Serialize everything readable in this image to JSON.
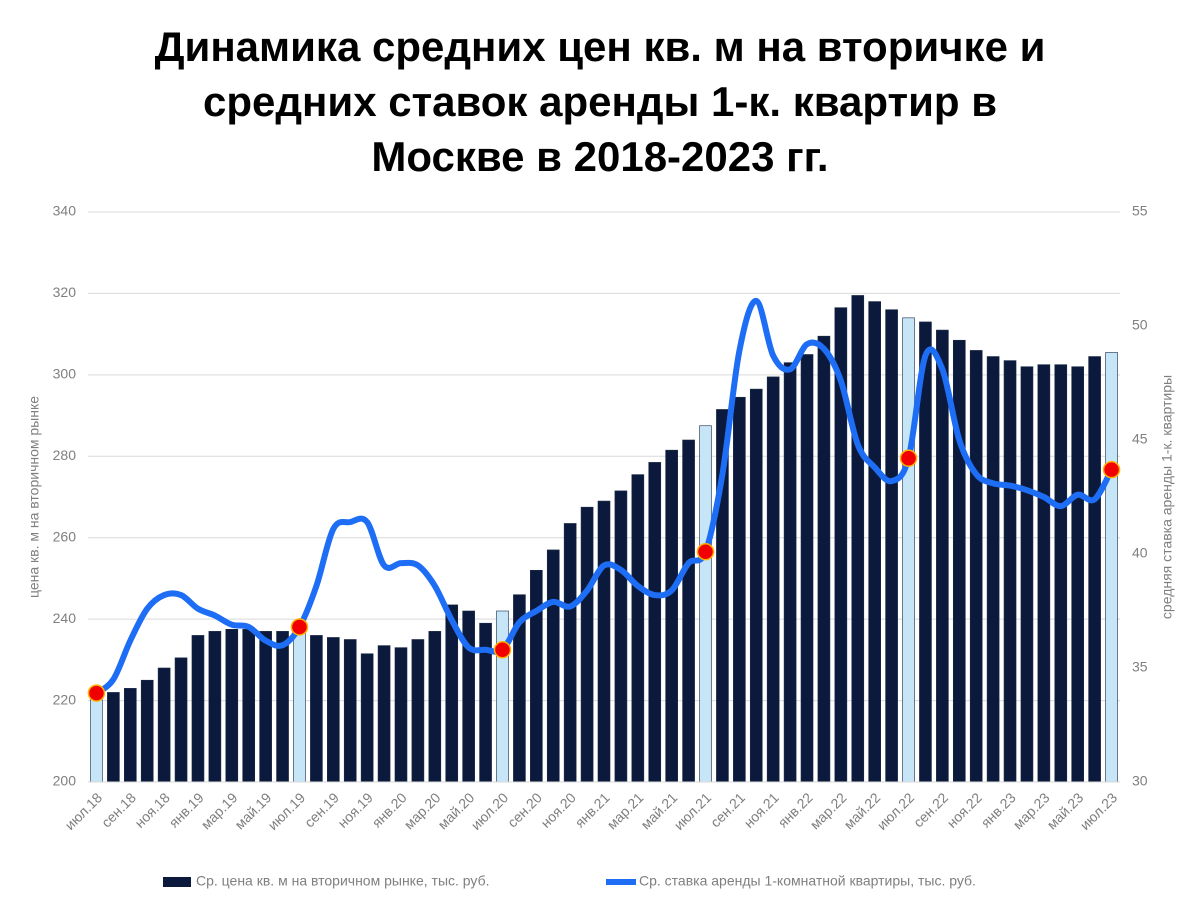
{
  "chart_data": {
    "type": "bar_line",
    "title": [
      "Динамика средних цен кв. м на вторичке и",
      "средних ставок аренды 1-к. квартир в",
      "Москве в 2018-2023 гг."
    ],
    "y_label": "цена кв. м на вторичном рынке",
    "y2_label": "средняя ставка аренды 1-к. квартиры",
    "categories": [
      "июл.18",
      null,
      "сен.18",
      null,
      "ноя.18",
      null,
      "янв.19",
      null,
      "мар.19",
      null,
      "май.19",
      null,
      "июл.19",
      null,
      "сен.19",
      null,
      "ноя.19",
      null,
      "янв.20",
      null,
      "мар.20",
      null,
      "май.20",
      null,
      "июл.20",
      null,
      "сен.20",
      null,
      "ноя.20",
      null,
      "янв.21",
      null,
      "мар.21",
      null,
      "май.21",
      null,
      "июл.21",
      null,
      "сен.21",
      null,
      "ноя.21",
      null,
      "янв.22",
      null,
      "мар.22",
      null,
      "май.22",
      null,
      "июл.22",
      null,
      "сен.22",
      null,
      "ноя.22",
      null,
      "янв.23",
      null,
      "мар.23",
      null,
      "май.23",
      null,
      "июл.23"
    ],
    "series": [
      {
        "name": "Ср. цена кв. м на вторичном рынке, тыс. руб.",
        "type": "bar",
        "color": "#0b1a3c",
        "values": [
          222,
          222,
          223,
          225,
          228,
          230.5,
          236,
          237,
          237.5,
          237.5,
          237,
          237,
          237.5,
          236,
          235.5,
          235,
          231.5,
          233.5,
          233,
          235,
          237,
          243.5,
          242,
          239,
          242,
          246,
          252,
          257,
          263.5,
          267.5,
          269,
          271.5,
          275.5,
          278.5,
          281.5,
          284,
          287.5,
          291.5,
          294.5,
          296.5,
          299.5,
          303,
          305,
          309.5,
          316.5,
          319.5,
          318,
          316,
          314,
          313,
          311,
          308.5,
          306,
          304.5,
          303.5,
          302,
          302.5,
          302.5,
          302,
          304.5,
          305.5
        ]
      },
      {
        "name": "Ср. ставка аренды 1-комнатной квартиры, тыс. руб.",
        "type": "line",
        "color": "#1e6ef5",
        "axis": "y2",
        "values": [
          33.9,
          34.5,
          36.2,
          37.6,
          38.2,
          38.2,
          37.6,
          37.3,
          36.9,
          36.8,
          36.2,
          36.0,
          36.8,
          38.6,
          41.1,
          41.4,
          41.4,
          39.5,
          39.6,
          39.5,
          38.6,
          37.1,
          35.9,
          35.8,
          35.8,
          37.0,
          37.5,
          37.9,
          37.7,
          38.4,
          39.5,
          39.3,
          38.6,
          38.2,
          38.4,
          39.6,
          40.1,
          43.5,
          48.9,
          51.1,
          48.7,
          48.1,
          49.2,
          49.0,
          47.6,
          44.8,
          43.8,
          43.2,
          44.2,
          48.7,
          48.1,
          45.0,
          43.5,
          43.1,
          43.0,
          42.8,
          42.5,
          42.1,
          42.6,
          42.4,
          43.7
        ]
      }
    ],
    "highlight": {
      "indices": [
        0,
        12,
        24,
        36,
        48,
        60
      ],
      "bar_color": "#c6e6f7",
      "marker_color": "#f00000"
    },
    "ylim": [
      200,
      340
    ],
    "yticks": [
      200,
      220,
      240,
      260,
      280,
      300,
      320,
      340
    ],
    "y2lim": [
      30,
      55
    ],
    "y2ticks": [
      30,
      35,
      40,
      45,
      50,
      55
    ],
    "grid": true
  }
}
